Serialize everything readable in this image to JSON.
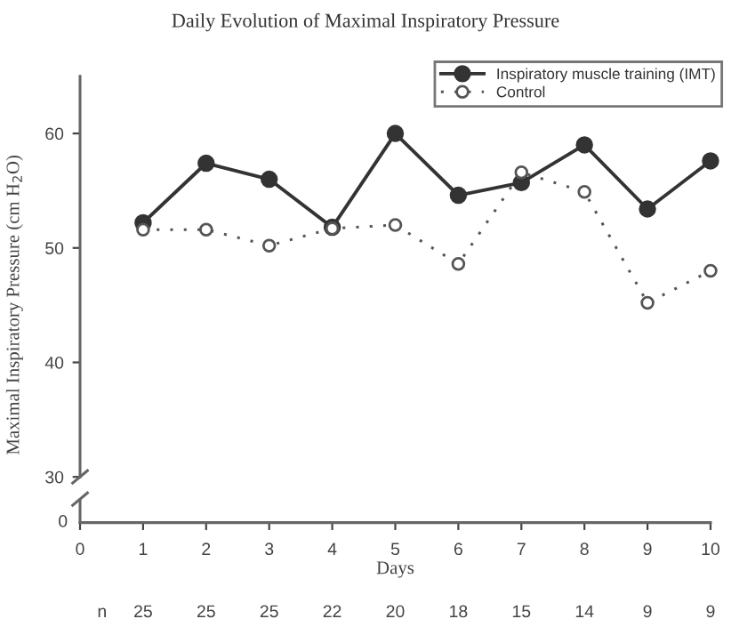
{
  "chart_data": {
    "type": "line",
    "title": "Daily Evolution of Maximal Inspiratory Pressure",
    "ylabel": "Maximal Inspiratory Pressure (cm H$_{2}$O)",
    "xlabel": "Days",
    "x": [
      1,
      2,
      3,
      4,
      5,
      6,
      7,
      8,
      9,
      10
    ],
    "series": [
      {
        "name": "Inspiratory muscle training (IMT)",
        "color": "#333333",
        "values": [
          52.2,
          57.4,
          56.0,
          51.8,
          60.0,
          54.6,
          55.7,
          59.0,
          53.4,
          57.6
        ],
        "marker": "circle",
        "line_style": "solid"
      },
      {
        "name": "Control",
        "color": "#555555",
        "values": [
          51.6,
          51.6,
          50.2,
          51.7,
          52.0,
          48.6,
          56.6,
          54.9,
          45.2,
          48.0
        ],
        "marker": "circle",
        "line_style": "dotted"
      }
    ],
    "xlim": [
      0,
      10
    ],
    "xticks": [
      0,
      1,
      2,
      3,
      4,
      5,
      6,
      7,
      8,
      9,
      10
    ],
    "ylim": [
      30,
      65
    ],
    "yticks": [
      30,
      40,
      50,
      60
    ],
    "legend": "top right",
    "annotations": [
      "0",
      "n",
      "25",
      "25",
      "25",
      "22",
      "20",
      "18",
      "15",
      "14",
      "9",
      "9"
    ]
  }
}
